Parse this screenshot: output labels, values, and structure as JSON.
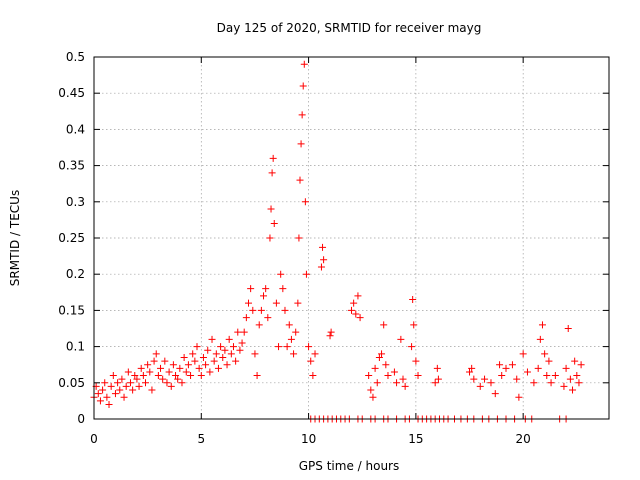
{
  "chart_data": {
    "type": "scatter",
    "title": "Day 125 of 2020, SRMTID for receiver mayg",
    "xlabel": "GPS time / hours",
    "ylabel": "SRMTID / TECUs",
    "xlim": [
      0,
      24
    ],
    "ylim": [
      0,
      0.5
    ],
    "xticks": [
      0,
      5,
      10,
      15,
      20
    ],
    "xtick_labels": [
      "0",
      "5",
      "10",
      "15",
      "20"
    ],
    "yticks": [
      0,
      0.05,
      0.1,
      0.15,
      0.2,
      0.25,
      0.3,
      0.35,
      0.4,
      0.45,
      0.5
    ],
    "ytick_labels": [
      "0",
      "0.05",
      "0.1",
      "0.15",
      "0.2",
      "0.25",
      "0.3",
      "0.35",
      "0.4",
      "0.45",
      "0.5"
    ],
    "grid": true,
    "marker": "+",
    "color": "#ff0000",
    "series": [
      {
        "name": "SRMTID",
        "points": [
          [
            0.0,
            0.03
          ],
          [
            0.1,
            0.045
          ],
          [
            0.2,
            0.035
          ],
          [
            0.3,
            0.025
          ],
          [
            0.4,
            0.04
          ],
          [
            0.5,
            0.05
          ],
          [
            0.6,
            0.03
          ],
          [
            0.7,
            0.02
          ],
          [
            0.8,
            0.045
          ],
          [
            0.9,
            0.06
          ],
          [
            1.0,
            0.035
          ],
          [
            1.1,
            0.05
          ],
          [
            1.2,
            0.04
          ],
          [
            1.3,
            0.055
          ],
          [
            1.4,
            0.03
          ],
          [
            1.5,
            0.045
          ],
          [
            1.6,
            0.065
          ],
          [
            1.7,
            0.05
          ],
          [
            1.8,
            0.04
          ],
          [
            1.9,
            0.06
          ],
          [
            2.0,
            0.055
          ],
          [
            2.1,
            0.045
          ],
          [
            2.2,
            0.07
          ],
          [
            2.3,
            0.06
          ],
          [
            2.4,
            0.05
          ],
          [
            2.5,
            0.075
          ],
          [
            2.6,
            0.065
          ],
          [
            2.7,
            0.04
          ],
          [
            2.8,
            0.08
          ],
          [
            2.9,
            0.09
          ],
          [
            3.0,
            0.06
          ],
          [
            3.1,
            0.07
          ],
          [
            3.2,
            0.055
          ],
          [
            3.3,
            0.08
          ],
          [
            3.4,
            0.05
          ],
          [
            3.5,
            0.065
          ],
          [
            3.6,
            0.045
          ],
          [
            3.7,
            0.075
          ],
          [
            3.8,
            0.06
          ],
          [
            3.9,
            0.055
          ],
          [
            4.0,
            0.07
          ],
          [
            4.1,
            0.05
          ],
          [
            4.2,
            0.085
          ],
          [
            4.3,
            0.065
          ],
          [
            4.4,
            0.075
          ],
          [
            4.5,
            0.06
          ],
          [
            4.6,
            0.09
          ],
          [
            4.7,
            0.08
          ],
          [
            4.8,
            0.1
          ],
          [
            4.9,
            0.07
          ],
          [
            5.0,
            0.06
          ],
          [
            5.1,
            0.085
          ],
          [
            5.2,
            0.075
          ],
          [
            5.3,
            0.095
          ],
          [
            5.4,
            0.065
          ],
          [
            5.5,
            0.11
          ],
          [
            5.6,
            0.08
          ],
          [
            5.7,
            0.09
          ],
          [
            5.8,
            0.07
          ],
          [
            5.9,
            0.1
          ],
          [
            6.0,
            0.085
          ],
          [
            6.1,
            0.095
          ],
          [
            6.2,
            0.075
          ],
          [
            6.3,
            0.11
          ],
          [
            6.4,
            0.09
          ],
          [
            6.5,
            0.1
          ],
          [
            6.6,
            0.08
          ],
          [
            6.7,
            0.12
          ],
          [
            6.8,
            0.095
          ],
          [
            6.9,
            0.105
          ],
          [
            7.0,
            0.12
          ],
          [
            7.1,
            0.14
          ],
          [
            7.2,
            0.16
          ],
          [
            7.3,
            0.18
          ],
          [
            7.4,
            0.15
          ],
          [
            7.5,
            0.09
          ],
          [
            7.6,
            0.06
          ],
          [
            7.7,
            0.13
          ],
          [
            7.8,
            0.15
          ],
          [
            7.9,
            0.17
          ],
          [
            8.0,
            0.18
          ],
          [
            8.1,
            0.14
          ],
          [
            8.2,
            0.25
          ],
          [
            8.25,
            0.29
          ],
          [
            8.3,
            0.34
          ],
          [
            8.35,
            0.36
          ],
          [
            8.4,
            0.27
          ],
          [
            8.5,
            0.16
          ],
          [
            8.6,
            0.1
          ],
          [
            8.7,
            0.2
          ],
          [
            8.8,
            0.18
          ],
          [
            8.9,
            0.15
          ],
          [
            9.0,
            0.1
          ],
          [
            9.1,
            0.13
          ],
          [
            9.2,
            0.11
          ],
          [
            9.3,
            0.09
          ],
          [
            9.4,
            0.12
          ],
          [
            9.5,
            0.16
          ],
          [
            9.55,
            0.25
          ],
          [
            9.6,
            0.33
          ],
          [
            9.65,
            0.38
          ],
          [
            9.7,
            0.42
          ],
          [
            9.75,
            0.46
          ],
          [
            9.8,
            0.49
          ],
          [
            9.85,
            0.3
          ],
          [
            9.9,
            0.2
          ],
          [
            10.0,
            0.1
          ],
          [
            10.1,
            0.08
          ],
          [
            10.2,
            0.06
          ],
          [
            10.3,
            0.09
          ],
          [
            10.6,
            0.21
          ],
          [
            10.65,
            0.237
          ],
          [
            10.7,
            0.22
          ],
          [
            11.0,
            0.115
          ],
          [
            11.05,
            0.12
          ],
          [
            12.0,
            0.15
          ],
          [
            12.1,
            0.16
          ],
          [
            12.2,
            0.145
          ],
          [
            12.3,
            0.17
          ],
          [
            12.4,
            0.14
          ],
          [
            12.8,
            0.06
          ],
          [
            12.9,
            0.04
          ],
          [
            13.0,
            0.03
          ],
          [
            13.1,
            0.07
          ],
          [
            13.2,
            0.05
          ],
          [
            13.3,
            0.085
          ],
          [
            13.4,
            0.09
          ],
          [
            13.5,
            0.13
          ],
          [
            13.6,
            0.075
          ],
          [
            13.7,
            0.06
          ],
          [
            14.0,
            0.065
          ],
          [
            14.1,
            0.05
          ],
          [
            14.3,
            0.11
          ],
          [
            14.4,
            0.055
          ],
          [
            14.5,
            0.045
          ],
          [
            14.8,
            0.1
          ],
          [
            14.85,
            0.165
          ],
          [
            14.9,
            0.13
          ],
          [
            15.0,
            0.08
          ],
          [
            15.1,
            0.06
          ],
          [
            15.9,
            0.05
          ],
          [
            16.0,
            0.07
          ],
          [
            16.05,
            0.055
          ],
          [
            17.5,
            0.065
          ],
          [
            17.6,
            0.07
          ],
          [
            17.7,
            0.055
          ],
          [
            18.0,
            0.045
          ],
          [
            18.2,
            0.055
          ],
          [
            18.5,
            0.05
          ],
          [
            18.7,
            0.035
          ],
          [
            18.9,
            0.075
          ],
          [
            19.0,
            0.06
          ],
          [
            19.2,
            0.07
          ],
          [
            19.5,
            0.075
          ],
          [
            19.7,
            0.055
          ],
          [
            19.8,
            0.03
          ],
          [
            20.0,
            0.09
          ],
          [
            20.2,
            0.065
          ],
          [
            20.5,
            0.05
          ],
          [
            20.7,
            0.07
          ],
          [
            20.8,
            0.11
          ],
          [
            20.9,
            0.13
          ],
          [
            21.0,
            0.09
          ],
          [
            21.1,
            0.06
          ],
          [
            21.2,
            0.08
          ],
          [
            21.3,
            0.05
          ],
          [
            21.5,
            0.06
          ],
          [
            21.9,
            0.045
          ],
          [
            22.0,
            0.07
          ],
          [
            22.1,
            0.125
          ],
          [
            22.2,
            0.055
          ],
          [
            22.3,
            0.04
          ],
          [
            22.4,
            0.08
          ],
          [
            22.5,
            0.06
          ],
          [
            22.6,
            0.05
          ],
          [
            22.7,
            0.075
          ],
          [
            10.1,
            0.0
          ],
          [
            10.3,
            0.0
          ],
          [
            10.5,
            0.0
          ],
          [
            10.7,
            0.0
          ],
          [
            10.9,
            0.0
          ],
          [
            11.1,
            0.0
          ],
          [
            11.3,
            0.0
          ],
          [
            11.5,
            0.0
          ],
          [
            11.7,
            0.0
          ],
          [
            11.9,
            0.0
          ],
          [
            12.3,
            0.0
          ],
          [
            12.5,
            0.0
          ],
          [
            12.9,
            0.0
          ],
          [
            13.1,
            0.0
          ],
          [
            13.5,
            0.0
          ],
          [
            13.7,
            0.0
          ],
          [
            14.1,
            0.0
          ],
          [
            14.5,
            0.0
          ],
          [
            14.7,
            0.0
          ],
          [
            15.1,
            0.0
          ],
          [
            15.3,
            0.0
          ],
          [
            15.5,
            0.0
          ],
          [
            15.7,
            0.0
          ],
          [
            15.9,
            0.0
          ],
          [
            16.1,
            0.0
          ],
          [
            16.3,
            0.0
          ],
          [
            16.5,
            0.0
          ],
          [
            16.8,
            0.0
          ],
          [
            17.1,
            0.0
          ],
          [
            17.4,
            0.0
          ],
          [
            17.7,
            0.0
          ],
          [
            18.1,
            0.0
          ],
          [
            18.4,
            0.0
          ],
          [
            18.8,
            0.0
          ],
          [
            19.2,
            0.0
          ],
          [
            19.6,
            0.0
          ],
          [
            20.1,
            0.0
          ],
          [
            20.4,
            0.0
          ],
          [
            21.7,
            0.0
          ],
          [
            22.0,
            0.0
          ]
        ]
      }
    ]
  }
}
